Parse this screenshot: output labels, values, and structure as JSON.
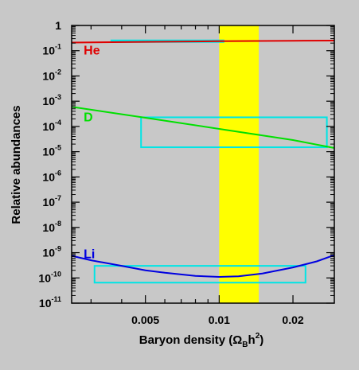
{
  "chart_data": {
    "type": "line",
    "title": "",
    "xlabel": "Baryon density (Ω",
    "xlabel_sub": "B",
    "xlabel_mid": "h",
    "xlabel_sup": "2",
    "xlabel_end": ")",
    "ylabel": "Relative abundances",
    "x_scale": "log",
    "y_scale": "log",
    "xlim": [
      0.0025,
      0.0295
    ],
    "ylim": [
      1e-11,
      1
    ],
    "x_ticks": [
      {
        "value": 0.005,
        "label": "0.005"
      },
      {
        "value": 0.01,
        "label": "0.01"
      },
      {
        "value": 0.02,
        "label": "0.02"
      }
    ],
    "y_ticks": [
      {
        "value": 1,
        "base": "1",
        "exp": ""
      },
      {
        "value": 0.1,
        "base": "10",
        "exp": "-1"
      },
      {
        "value": 0.01,
        "base": "10",
        "exp": "-2"
      },
      {
        "value": 0.001,
        "base": "10",
        "exp": "-3"
      },
      {
        "value": 0.0001,
        "base": "10",
        "exp": "-4"
      },
      {
        "value": 1e-05,
        "base": "10",
        "exp": "-5"
      },
      {
        "value": 1e-06,
        "base": "10",
        "exp": "-6"
      },
      {
        "value": 1e-07,
        "base": "10",
        "exp": "-7"
      },
      {
        "value": 1e-08,
        "base": "10",
        "exp": "-8"
      },
      {
        "value": 1e-09,
        "base": "10",
        "exp": "-9"
      },
      {
        "value": 1e-10,
        "base": "10",
        "exp": "-10"
      },
      {
        "value": 1e-11,
        "base": "10",
        "exp": "-11"
      }
    ],
    "series": [
      {
        "name": "He",
        "color": "#e00000",
        "points": [
          [
            0.0025,
            0.21
          ],
          [
            0.005,
            0.225
          ],
          [
            0.01,
            0.237
          ],
          [
            0.02,
            0.248
          ],
          [
            0.0295,
            0.252
          ]
        ],
        "label_at": [
          0.0028,
          0.072
        ]
      },
      {
        "name": "D",
        "color": "#00e000",
        "points": [
          [
            0.0025,
            0.0006
          ],
          [
            0.005,
            0.00022
          ],
          [
            0.01,
            8e-05
          ],
          [
            0.02,
            2.9e-05
          ],
          [
            0.0295,
            1.4e-05
          ]
        ],
        "label_at": [
          0.0028,
          0.00016
        ]
      },
      {
        "name": "Li",
        "color": "#0000e0",
        "points": [
          [
            0.0025,
            7.5e-10
          ],
          [
            0.003,
            5e-10
          ],
          [
            0.004,
            3e-10
          ],
          [
            0.005,
            2e-10
          ],
          [
            0.006,
            1.6e-10
          ],
          [
            0.008,
            1.2e-10
          ],
          [
            0.01,
            1.1e-10
          ],
          [
            0.012,
            1.15e-10
          ],
          [
            0.015,
            1.5e-10
          ],
          [
            0.02,
            2.6e-10
          ],
          [
            0.025,
            4.5e-10
          ],
          [
            0.0295,
            8e-10
          ]
        ],
        "label_at": [
          0.0028,
          6e-10
        ]
      }
    ],
    "shaded_band": {
      "x": [
        0.01,
        0.0145
      ],
      "color": "#ffff00"
    },
    "observation_boxes": [
      {
        "element": "He",
        "x": [
          0.0036,
          0.0105
        ],
        "y": [
          0.225,
          0.255
        ],
        "color": "#00e5e5",
        "style": "thick-line"
      },
      {
        "element": "D",
        "x": [
          0.0048,
          0.0275
        ],
        "y": [
          1.5e-05,
          0.00023
        ],
        "color": "#00e5e5"
      },
      {
        "element": "Li",
        "x": [
          0.0031,
          0.0225
        ],
        "y": [
          6.5e-11,
          3e-10
        ],
        "color": "#00e5e5"
      }
    ],
    "grid": false,
    "legend": "inline labels"
  }
}
